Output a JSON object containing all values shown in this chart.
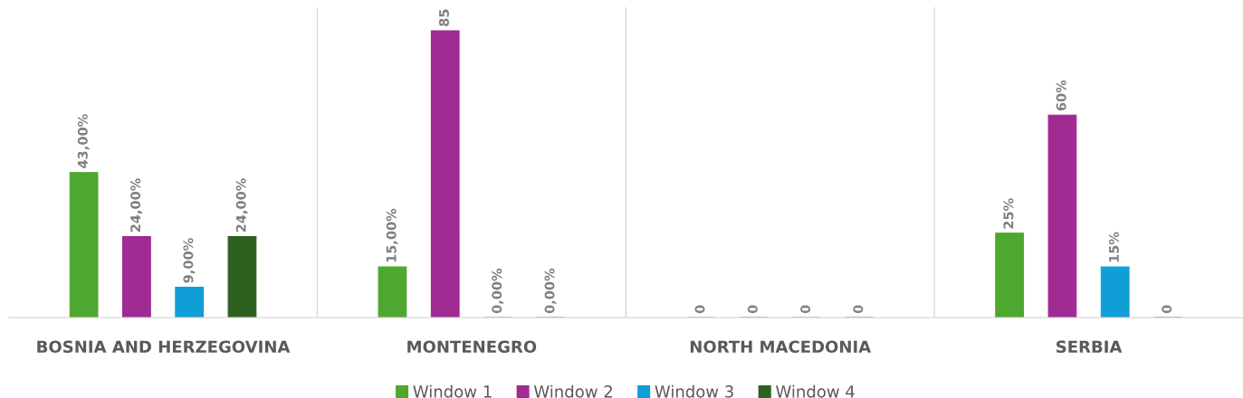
{
  "chart_data": {
    "type": "bar",
    "categories": [
      "BOSNIA AND HERZEGOVINA",
      "MONTENEGRO",
      "NORTH MACEDONIA",
      "SERBIA"
    ],
    "series": [
      {
        "name": "Window 1",
        "color": "#4ea72e",
        "values": [
          43,
          15,
          0,
          25
        ],
        "value_labels": [
          "43,00%",
          "15,00%",
          "0",
          "25%"
        ]
      },
      {
        "name": "Window 2",
        "color": "#a02b93",
        "values": [
          24,
          85,
          0,
          60
        ],
        "value_labels": [
          "24,00%",
          "85",
          "0",
          "60%"
        ]
      },
      {
        "name": "Window 3",
        "color": "#0f9ed5",
        "values": [
          9,
          0,
          0,
          15
        ],
        "value_labels": [
          "9,00%",
          "0,00%",
          "0",
          "15%"
        ]
      },
      {
        "name": "Window 4",
        "color": "#2d6120",
        "values": [
          24,
          0,
          0,
          0
        ],
        "value_labels": [
          "24,00%",
          "0,00%",
          "0",
          "0"
        ]
      }
    ],
    "ylim": [
      0,
      92
    ],
    "grid": "x",
    "legend": "bottom",
    "tick_labels": "x"
  }
}
